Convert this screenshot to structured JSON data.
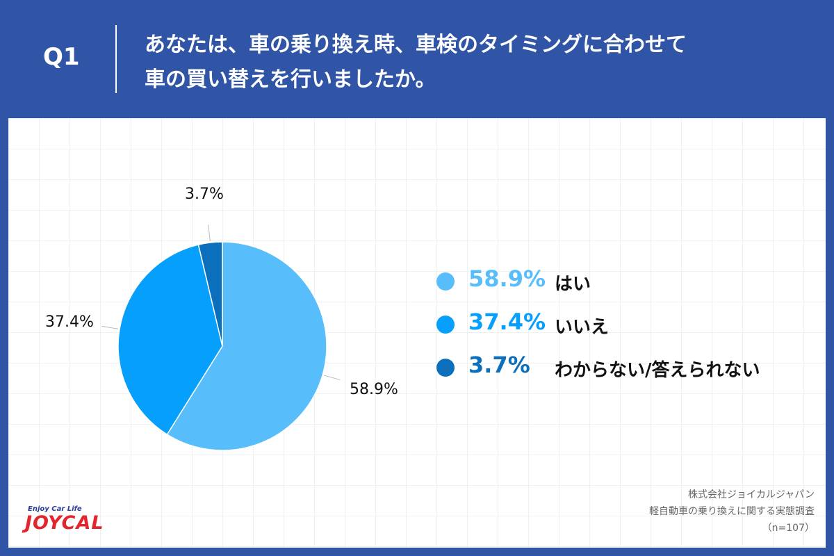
{
  "header": {
    "question_number": "Q1",
    "question_lines": [
      "あなたは、車の乗り換え時、車検のタイミングに合わせて",
      "車の買い替えを行いましたか。"
    ]
  },
  "chart_data": {
    "type": "pie",
    "categories": [
      "はい",
      "いいえ",
      "わからない/答えられない"
    ],
    "values": [
      58.9,
      37.4,
      3.7
    ],
    "data_labels": [
      "58.9%",
      "37.4%",
      "3.7%"
    ],
    "colors": [
      "#57bdfb",
      "#069ffb",
      "#0b6fbb"
    ],
    "legend_placement": "right",
    "grid": true
  },
  "legend": [
    {
      "pct": "58.9%",
      "label": "はい",
      "color": "#57bdfb"
    },
    {
      "pct": "37.4%",
      "label": "いいえ",
      "color": "#069ffb"
    },
    {
      "pct": "3.7%",
      "label": "わからない/答えられない",
      "color": "#0b6fbb"
    }
  ],
  "logo": {
    "tagline": "Enjoy Car Life",
    "wordmark": "JOYCAL"
  },
  "credits": {
    "company": "株式会社ジョイカルジャパン",
    "survey": "軽自動車の乗り換えに関する実態調査",
    "sample": "（n=107）"
  },
  "colors": {
    "background": "#3155a6",
    "panel": "#ffffff"
  }
}
